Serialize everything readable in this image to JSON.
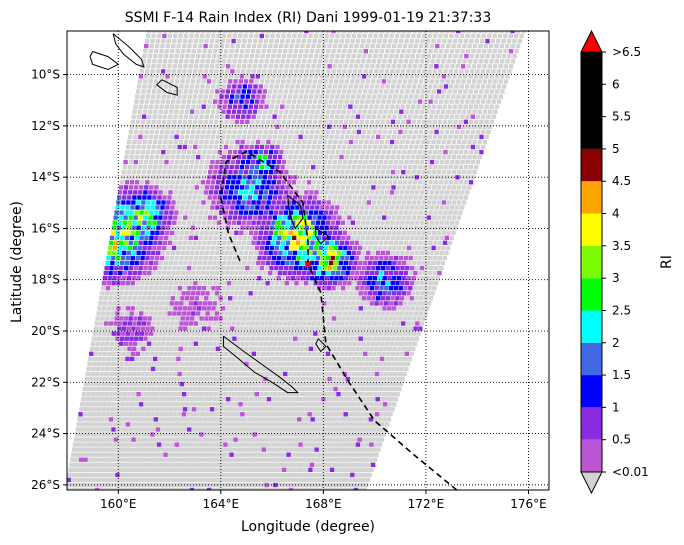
{
  "chart_data": {
    "type": "heatmap",
    "title": "SSMI F-14 Rain Index (RI) Dani 1999-01-19 21:37:33",
    "xlabel": "Longitude (degree)",
    "ylabel": "Latitude (degree)",
    "xlim": [
      158.0,
      176.8
    ],
    "ylim": [
      -26.2,
      -8.3
    ],
    "grid": true,
    "x_ticks": [
      {
        "value": 160,
        "label": "160°E"
      },
      {
        "value": 164,
        "label": "164°E"
      },
      {
        "value": 168,
        "label": "168°E"
      },
      {
        "value": 172,
        "label": "172°E"
      },
      {
        "value": 176,
        "label": "176°E"
      }
    ],
    "y_ticks": [
      {
        "value": -10,
        "label": "10°S"
      },
      {
        "value": -12,
        "label": "12°S"
      },
      {
        "value": -14,
        "label": "14°S"
      },
      {
        "value": -16,
        "label": "16°S"
      },
      {
        "value": -18,
        "label": "18°S"
      },
      {
        "value": -20,
        "label": "20°S"
      },
      {
        "value": -22,
        "label": "22°S"
      },
      {
        "value": -24,
        "label": "24°S"
      },
      {
        "value": -26,
        "label": "26°S"
      }
    ],
    "colorbar": {
      "label": "RI",
      "under_label": "<0.01",
      "over_label": ">6.5",
      "under_color": "#d3d3d3",
      "over_color": "#ff0000",
      "tick_labels": [
        "<0.01",
        "0.5",
        "1",
        "1.5",
        "2",
        "2.5",
        "3",
        "3.5",
        "4",
        "4.5",
        "5",
        "5.5",
        "6",
        ">6.5"
      ],
      "bins": [
        {
          "from": 0.01,
          "to": 0.5,
          "color": "#ba55d3"
        },
        {
          "from": 0.5,
          "to": 1.0,
          "color": "#8a2be2"
        },
        {
          "from": 1.0,
          "to": 1.5,
          "color": "#0000ff"
        },
        {
          "from": 1.5,
          "to": 2.0,
          "color": "#4169e1"
        },
        {
          "from": 2.0,
          "to": 2.5,
          "color": "#00ffff"
        },
        {
          "from": 2.5,
          "to": 3.0,
          "color": "#00ff00"
        },
        {
          "from": 3.0,
          "to": 3.5,
          "color": "#7cfc00"
        },
        {
          "from": 3.5,
          "to": 4.0,
          "color": "#ffff00"
        },
        {
          "from": 4.0,
          "to": 4.5,
          "color": "#ffa500"
        },
        {
          "from": 4.5,
          "to": 5.0,
          "color": "#8b0000"
        },
        {
          "from": 5.0,
          "to": 6.5,
          "color": "#000000"
        }
      ]
    },
    "swath": {
      "corners": [
        [
          161.2,
          -8.3
        ],
        [
          175.8,
          -8.3
        ],
        [
          169.6,
          -26.2
        ],
        [
          158.0,
          -26.2
        ]
      ],
      "background_value": 0.0
    },
    "rain_clusters": [
      {
        "lon": 159.8,
        "lat": -16.2,
        "radius": 1.4,
        "peak": 3.4
      },
      {
        "lon": 161.0,
        "lat": -15.5,
        "radius": 0.9,
        "peak": 2.6
      },
      {
        "lon": 165.1,
        "lat": -14.4,
        "radius": 1.3,
        "peak": 1.8
      },
      {
        "lon": 167.0,
        "lat": -16.3,
        "radius": 1.2,
        "peak": 3.5
      },
      {
        "lon": 168.2,
        "lat": -17.2,
        "radius": 0.8,
        "peak": 3.6
      },
      {
        "lon": 170.4,
        "lat": -18.0,
        "radius": 0.9,
        "peak": 1.6
      },
      {
        "lon": 164.8,
        "lat": -11.0,
        "radius": 0.8,
        "peak": 1.3
      },
      {
        "lon": 165.6,
        "lat": -13.4,
        "radius": 0.6,
        "peak": 2.2
      },
      {
        "lon": 160.5,
        "lat": -20.0,
        "radius": 1.0,
        "peak": 0.6
      },
      {
        "lon": 163.0,
        "lat": -19.0,
        "radius": 1.4,
        "peak": 0.4
      }
    ],
    "track": {
      "style": "dashed",
      "color": "#000000",
      "points": [
        [
          173.2,
          -26.2
        ],
        [
          171.5,
          -24.8
        ],
        [
          170.0,
          -23.5
        ],
        [
          169.0,
          -22.0
        ],
        [
          168.1,
          -20.5
        ],
        [
          167.9,
          -18.5
        ],
        [
          167.4,
          -17.4
        ],
        [
          167.4,
          -16.5
        ],
        [
          167.2,
          -15.0
        ],
        [
          166.3,
          -13.8
        ],
        [
          165.0,
          -13.0
        ],
        [
          164.2,
          -13.4
        ],
        [
          164.0,
          -14.8
        ],
        [
          164.3,
          -16.2
        ],
        [
          164.8,
          -17.4
        ]
      ]
    },
    "storm_position": {
      "lon": 167.4,
      "lat": -17.4,
      "color": "#ff0000"
    },
    "coastlines": [
      [
        [
          159.8,
          -8.4
        ],
        [
          160.4,
          -8.9
        ],
        [
          160.9,
          -9.4
        ],
        [
          161.0,
          -9.7
        ],
        [
          160.7,
          -9.6
        ],
        [
          160.2,
          -9.2
        ],
        [
          159.9,
          -8.8
        ],
        [
          159.8,
          -8.4
        ]
      ],
      [
        [
          159.0,
          -9.1
        ],
        [
          159.6,
          -9.3
        ],
        [
          160.0,
          -9.6
        ],
        [
          159.6,
          -9.8
        ],
        [
          159.0,
          -9.6
        ],
        [
          158.9,
          -9.3
        ],
        [
          159.0,
          -9.1
        ]
      ],
      [
        [
          161.7,
          -10.2
        ],
        [
          162.3,
          -10.5
        ],
        [
          162.3,
          -10.8
        ],
        [
          161.9,
          -10.7
        ],
        [
          161.5,
          -10.4
        ],
        [
          161.7,
          -10.2
        ]
      ],
      [
        [
          164.1,
          -20.2
        ],
        [
          164.9,
          -20.8
        ],
        [
          165.6,
          -21.3
        ],
        [
          166.3,
          -21.8
        ],
        [
          166.8,
          -22.2
        ],
        [
          167.0,
          -22.4
        ],
        [
          166.6,
          -22.4
        ],
        [
          166.0,
          -22.0
        ],
        [
          165.3,
          -21.6
        ],
        [
          164.6,
          -21.0
        ],
        [
          164.1,
          -20.6
        ],
        [
          164.1,
          -20.2
        ]
      ],
      [
        [
          166.6,
          -14.7
        ],
        [
          167.1,
          -15.1
        ],
        [
          167.2,
          -15.6
        ],
        [
          166.9,
          -16.0
        ],
        [
          166.7,
          -15.5
        ],
        [
          166.6,
          -14.7
        ]
      ],
      [
        [
          167.7,
          -16.0
        ],
        [
          168.2,
          -16.3
        ],
        [
          167.9,
          -16.6
        ],
        [
          167.7,
          -16.3
        ],
        [
          167.7,
          -16.0
        ]
      ],
      [
        [
          167.8,
          -20.3
        ],
        [
          168.1,
          -20.6
        ],
        [
          167.9,
          -20.8
        ],
        [
          167.7,
          -20.5
        ],
        [
          167.8,
          -20.3
        ]
      ]
    ]
  }
}
